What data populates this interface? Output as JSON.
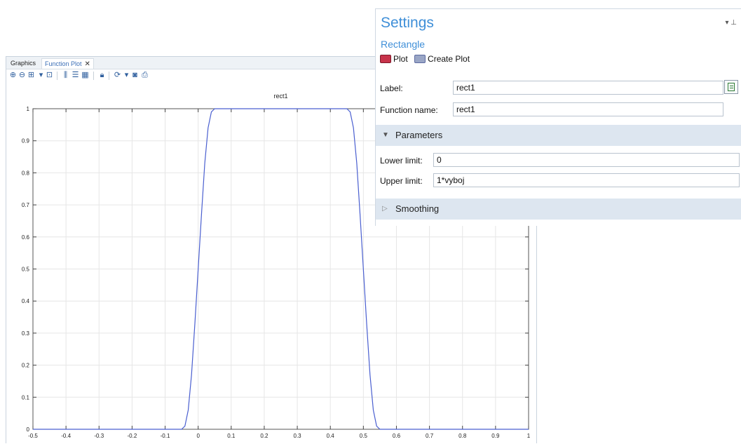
{
  "tabs": {
    "graphics": "Graphics",
    "function_plot": "Function Plot",
    "close": "✕"
  },
  "toolbar_icons": [
    "zoom-in-icon",
    "zoom-out-icon",
    "zoom-box-icon",
    "zoom-extents-icon",
    "grid-icon",
    "legend-icon",
    "table-icon",
    "lock-icon",
    "refresh-icon",
    "camera-icon",
    "print-icon"
  ],
  "settings": {
    "title": "Settings",
    "subtitle": "Rectangle",
    "plot_button": "Plot",
    "create_plot_button": "Create Plot",
    "label_label": "Label:",
    "label_value": "rect1",
    "function_name_label": "Function name:",
    "function_name_value": "rect1",
    "parameters_section": "Parameters",
    "lower_limit_label": "Lower limit:",
    "lower_limit_value": "0",
    "upper_limit_label": "Upper limit:",
    "upper_limit_value": "1*vyboj",
    "smoothing_section": "Smoothing",
    "pin_controls": "▾ ⊥"
  },
  "chart_data": {
    "type": "line",
    "title": "rect1",
    "xlim": [
      -0.5,
      1
    ],
    "ylim": [
      0,
      1
    ],
    "xticks": [
      "-0.5",
      "-0.4",
      "-0.3",
      "-0.2",
      "-0.1",
      "0",
      "0.1",
      "0.2",
      "0.3",
      "0.4",
      "0.5",
      "0.6",
      "0.7",
      "0.8",
      "0.9",
      "1"
    ],
    "yticks": [
      "0",
      "0.1",
      "0.2",
      "0.3",
      "0.4",
      "0.5",
      "0.6",
      "0.7",
      "0.8",
      "0.9",
      "1"
    ],
    "grid": true,
    "color": "#4a5fd0",
    "series": [
      {
        "x": [
          -0.5,
          -0.05,
          -0.04,
          -0.03,
          -0.02,
          -0.01,
          0,
          0.01,
          0.02,
          0.03,
          0.04,
          0.05,
          0.45,
          0.46,
          0.47,
          0.48,
          0.49,
          0.5,
          0.51,
          0.52,
          0.53,
          0.54,
          0.55,
          1
        ],
        "y": [
          0,
          0,
          0.01,
          0.06,
          0.17,
          0.33,
          0.5,
          0.67,
          0.83,
          0.94,
          0.99,
          1,
          1,
          0.99,
          0.94,
          0.83,
          0.67,
          0.5,
          0.33,
          0.17,
          0.06,
          0.01,
          0,
          0
        ]
      }
    ]
  }
}
